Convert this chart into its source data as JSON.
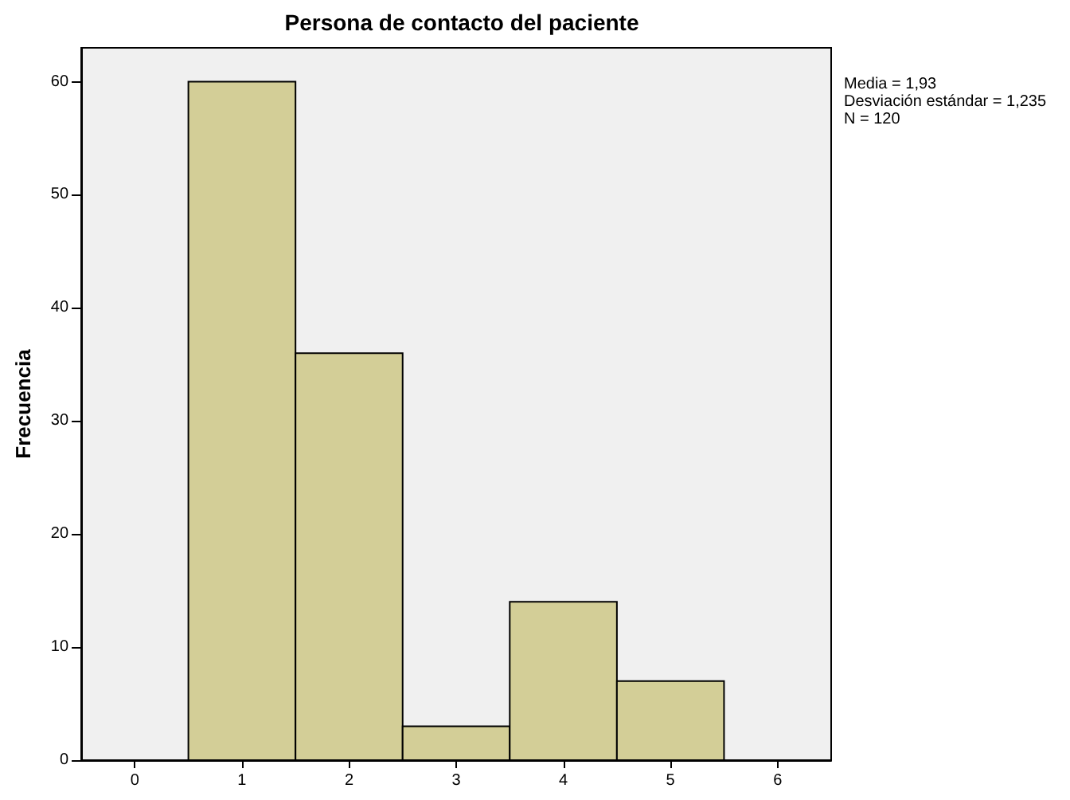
{
  "chart_data": {
    "type": "histogram",
    "title": "Persona de contacto del paciente",
    "ylabel": "Frecuencia",
    "annotations": [
      "Media = 1,93",
      "Desviación estándar = 1,235",
      "N = 120"
    ],
    "bins": [
      0.5,
      1.5,
      2.5,
      3.5,
      4.5,
      5.5
    ],
    "values": [
      60,
      36,
      3,
      14,
      7
    ],
    "color": "#d3ce97",
    "xlim": [
      -0.5,
      6.5
    ],
    "xticks": [
      0,
      1,
      2,
      3,
      4,
      5,
      6
    ],
    "ylim": [
      0,
      63
    ],
    "yticks": [
      0,
      10,
      20,
      30,
      40,
      50,
      60
    ]
  }
}
